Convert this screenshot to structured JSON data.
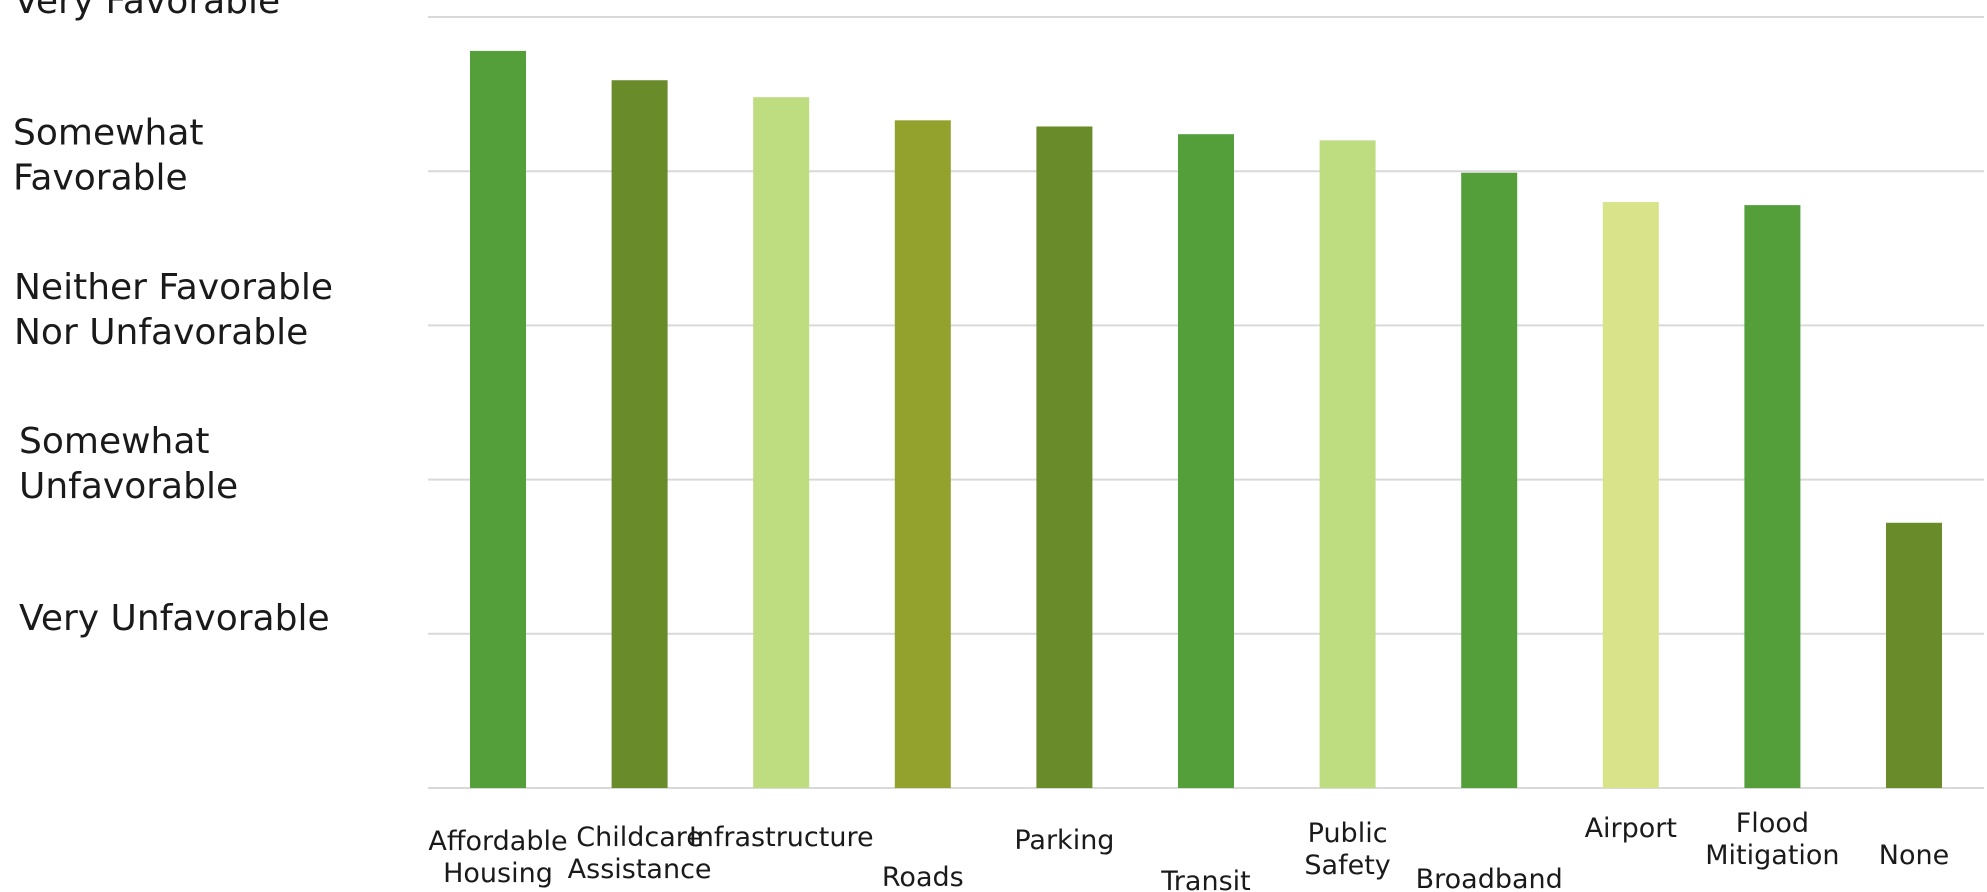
{
  "chart_data": {
    "type": "bar",
    "title": "",
    "xlabel": "",
    "ylabel": "",
    "ylim": [
      0,
      5
    ],
    "y_tick_values": [
      1,
      2,
      3,
      4,
      5
    ],
    "y_tick_labels": [
      [
        "Very Unfavorable"
      ],
      [
        "Somewhat",
        "Unfavorable"
      ],
      [
        "Neither Favorable",
        "Nor Unfavorable"
      ],
      [
        "Somewhat",
        "Favorable"
      ],
      [
        "Very Favorable"
      ]
    ],
    "categories": [
      [
        "Affordable",
        "Housing"
      ],
      [
        "Childcare",
        "Assistance"
      ],
      [
        "Infrastructure"
      ],
      [
        "Roads"
      ],
      [
        "Parking"
      ],
      [
        "Transit"
      ],
      [
        "Public",
        "Safety"
      ],
      [
        "Broadband"
      ],
      [
        "Airport"
      ],
      [
        "Flood",
        "Mitigation"
      ],
      [
        "None"
      ]
    ],
    "values": [
      4.78,
      4.59,
      4.48,
      4.33,
      4.29,
      4.24,
      4.2,
      3.99,
      3.8,
      3.78,
      1.72
    ],
    "bar_colors": [
      "#549f3a",
      "#6a8b2a",
      "#bedc80",
      "#93a22c",
      "#6a8b2a",
      "#549f3a",
      "#bedc80",
      "#549f3a",
      "#d9e38a",
      "#549f3a",
      "#6a8b2a"
    ],
    "grid": true,
    "legend": "none"
  }
}
